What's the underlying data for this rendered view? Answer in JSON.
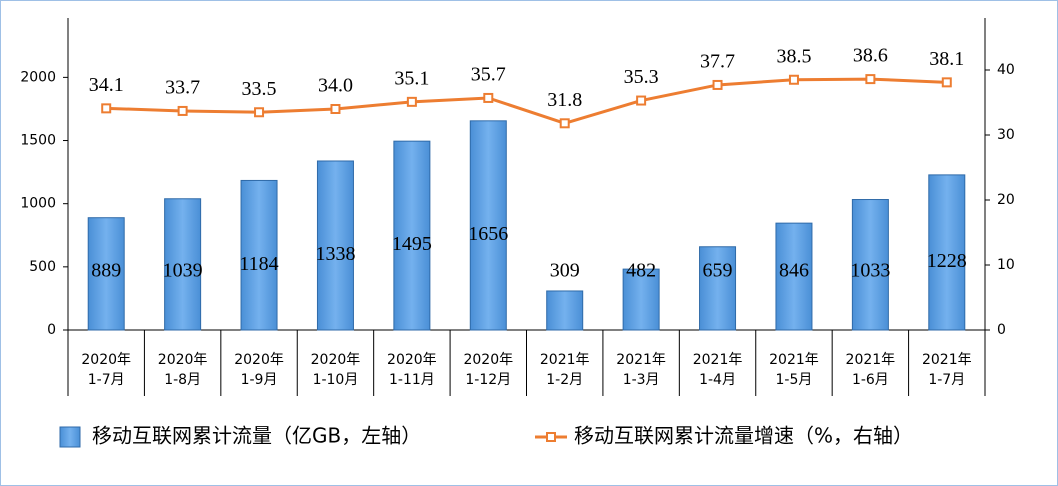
{
  "chart_data": {
    "type": "bar",
    "categories": [
      "2020年\n1-7月",
      "2020年\n1-8月",
      "2020年\n1-9月",
      "2020年\n1-10月",
      "2020年\n1-11月",
      "2020年\n1-12月",
      "2021年\n1-2月",
      "2021年\n1-3月",
      "2021年\n1-4月",
      "2021年\n1-5月",
      "2021年\n1-6月",
      "2021年\n1-7月"
    ],
    "series": [
      {
        "name": "移动互联网累计流量（亿GB，左轴）",
        "type": "bar",
        "color": "#5b9bd5",
        "values": [
          889,
          1039,
          1184,
          1338,
          1495,
          1656,
          309,
          482,
          659,
          846,
          1033,
          1228
        ]
      },
      {
        "name": "移动互联网累计流量增速（%，右轴）",
        "type": "line",
        "axis": "y2",
        "color": "#ed7d31",
        "values": [
          34.1,
          33.7,
          33.5,
          34.0,
          35.1,
          35.7,
          31.8,
          35.3,
          37.7,
          38.5,
          38.6,
          38.1
        ],
        "value_labels": [
          "34.1",
          "33.7",
          "33.5",
          "34.0",
          "35.1",
          "35.7",
          "31.8",
          "35.3",
          "37.7",
          "38.5",
          "38.6",
          "38.1"
        ]
      }
    ],
    "ylim": [
      0,
      2470
    ],
    "yticks": [
      0,
      500,
      1000,
      1500,
      2000
    ],
    "y2lim": [
      0,
      48
    ],
    "y2ticks": [
      0,
      10,
      20,
      30,
      40
    ],
    "legend": "bottom"
  }
}
